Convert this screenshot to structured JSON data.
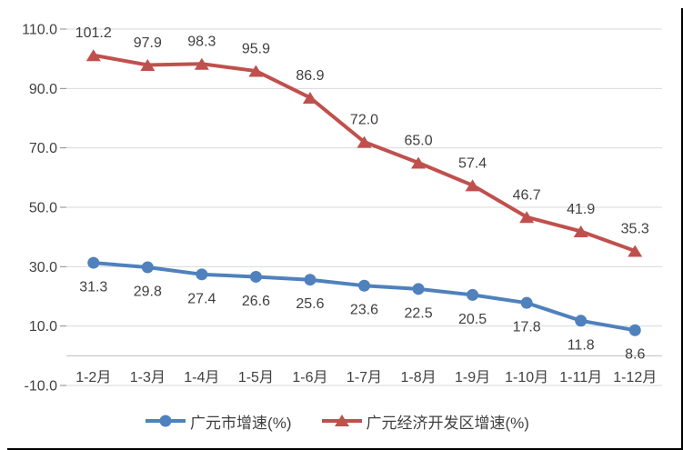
{
  "chart_data": {
    "type": "line",
    "title": "",
    "categories": [
      "1-2月",
      "1-3月",
      "1-4月",
      "1-5月",
      "1-6月",
      "1-7月",
      "1-8月",
      "1-9月",
      "1-10月",
      "1-11月",
      "1-12月"
    ],
    "series": [
      {
        "name": "广元市增速(%)",
        "marker": "circle",
        "color": "#4F81BD",
        "label_position": "below",
        "values": [
          31.3,
          29.8,
          27.4,
          26.6,
          25.6,
          23.6,
          22.5,
          20.5,
          17.8,
          11.8,
          8.6
        ]
      },
      {
        "name": "广元经济开发区增速(%)",
        "marker": "triangle",
        "color": "#C0504D",
        "label_position": "above",
        "values": [
          101.2,
          97.9,
          98.3,
          95.9,
          86.9,
          72.0,
          65.0,
          57.4,
          46.7,
          41.9,
          35.3
        ]
      }
    ],
    "y_axis": {
      "min": -10,
      "max": 110,
      "major_unit": 20,
      "tick_labels": [
        "110.0",
        "90.0",
        "70.0",
        "50.0",
        "30.0",
        "10.0",
        "-10.0"
      ],
      "axis_crosses_at": 0
    },
    "grid": true,
    "legend_position": "bottom",
    "data_label_decimals": 1,
    "colors": {
      "gridline": "#D9D9D9",
      "axis_line": "#BFBFBF",
      "tick_mark": "#898989",
      "text": "#404040",
      "background": "#FFFFFF",
      "shadow": "#000000"
    }
  }
}
